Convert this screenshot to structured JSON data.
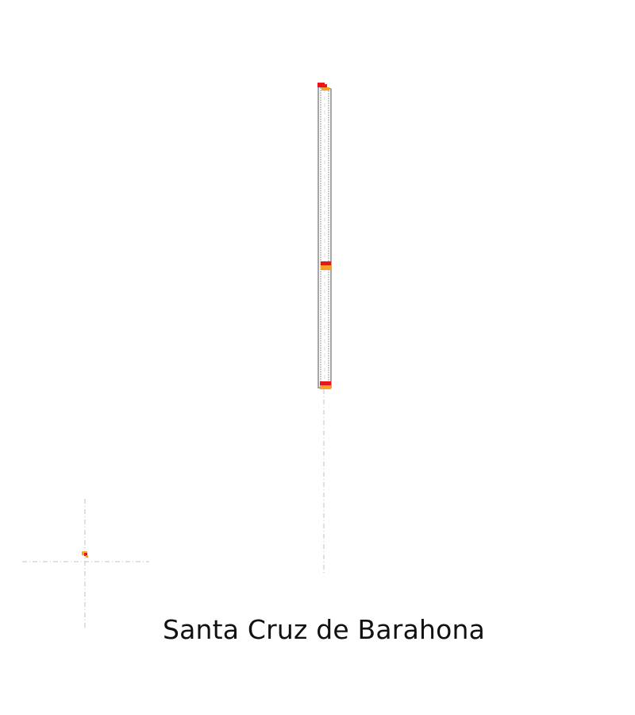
{
  "map": {
    "place_name": "Santa Cruz de Barahona",
    "colors": {
      "route_line": "#808080",
      "guide_line": "#cfcfcf",
      "marker_red": "#e8151b",
      "marker_orange": "#f7a12a",
      "background": "#ffffff"
    },
    "icons": {
      "marker": "map-marker-icon",
      "crosshair": "crosshair-icon"
    }
  }
}
